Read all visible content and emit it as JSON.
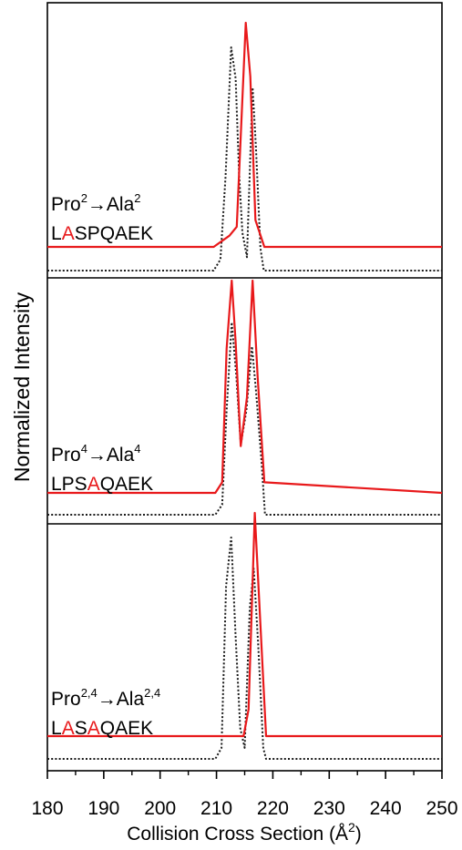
{
  "colors": {
    "red": "#e8191b",
    "black": "#1a1a1a",
    "axis": "#000000"
  },
  "chart_data": {
    "type": "line",
    "ylabel": "Normalized Intensity",
    "xlabel": {
      "text": "Collision Cross Section (Å",
      "sup": "2",
      "close": ")"
    },
    "xlim": [
      180,
      250
    ],
    "xticks": [
      "180",
      "190",
      "200",
      "210",
      "220",
      "230",
      "240",
      "250"
    ],
    "yticks": false,
    "panels": [
      {
        "label_line1": {
          "pre": "Pro",
          "sup1": "2",
          "arrow": "→",
          "mid": "Ala",
          "sup2": "2"
        },
        "label_line2": [
          {
            "t": "L",
            "red": false
          },
          {
            "t": "A",
            "red": true
          },
          {
            "t": "SPQAEK",
            "red": false
          }
        ],
        "series": [
          {
            "name": "",
            "style": "solid-red",
            "x": [
              180,
              209.5,
              212.3,
              213.6,
              214.4,
              215.2,
              216.0,
              216.9,
              218.5,
              250
            ],
            "y": [
              0,
              0,
              0.05,
              0.09,
              0.55,
              1.0,
              0.76,
              0.12,
              0,
              0
            ]
          },
          {
            "name": "",
            "style": "dotted-black",
            "x": [
              180,
              209.5,
              210.7,
              211.6,
              212.6,
              213.4,
              214.0,
              214.6,
              215.4,
              216.4,
              217.0,
              217.8,
              218.4,
              250
            ],
            "y": [
              0,
              0,
              0.05,
              0.42,
              1.0,
              0.86,
              0.44,
              0.17,
              0.06,
              0.82,
              0.55,
              0.1,
              0,
              0
            ]
          }
        ]
      },
      {
        "label_line1": {
          "pre": "Pro",
          "sup1": "4",
          "arrow": "→",
          "mid": "Ala",
          "sup2": "4"
        },
        "label_line2": [
          {
            "t": "LPS",
            "red": false
          },
          {
            "t": "A",
            "red": true
          },
          {
            "t": "QAEK",
            "red": false
          }
        ],
        "series": [
          {
            "name": "",
            "style": "solid-red",
            "x": [
              180,
              209.8,
              211.0,
              211.8,
              212.7,
              213.4,
              214.3,
              215.4,
              216.4,
              217.3,
              218.5,
              250
            ],
            "y": [
              0,
              0,
              0.05,
              0.68,
              1.0,
              0.71,
              0.22,
              0.45,
              1.0,
              0.55,
              0.05,
              0
            ]
          },
          {
            "name": "",
            "style": "dotted-black",
            "x": [
              180,
              209.8,
              211.0,
              211.8,
              212.7,
              213.5,
              214.3,
              215.3,
              216.3,
              217.0,
              218.0,
              218.6,
              250
            ],
            "y": [
              0,
              0,
              0.05,
              0.52,
              0.96,
              0.7,
              0.35,
              0.52,
              0.84,
              0.62,
              0.26,
              0,
              0
            ]
          }
        ]
      },
      {
        "label_line1": {
          "pre": "Pro",
          "sup1": "2,4",
          "arrow": "→",
          "mid": "Ala",
          "sup2": "2,4"
        },
        "label_line2": [
          {
            "t": "L",
            "red": false
          },
          {
            "t": "A",
            "red": true
          },
          {
            "t": "S",
            "red": false
          },
          {
            "t": "A",
            "red": true
          },
          {
            "t": "QAEK",
            "red": false
          }
        ],
        "series": [
          {
            "name": "",
            "style": "solid-red",
            "x": [
              180,
              214.8,
              215.7,
              216.8,
              217.9,
              218.8,
              250
            ],
            "y": [
              0,
              0,
              0.12,
              1.0,
              0.45,
              0,
              0
            ]
          },
          {
            "name": "",
            "style": "dotted-black",
            "x": [
              180,
              209.8,
              210.9,
              211.7,
              212.6,
              213.4,
              214.2,
              215.0,
              215.9,
              216.6,
              217.4,
              218.3,
              218.8,
              250
            ],
            "y": [
              0,
              0,
              0.05,
              0.78,
              1.0,
              0.55,
              0.14,
              0.05,
              0.68,
              0.86,
              0.52,
              0.05,
              0,
              0
            ]
          }
        ]
      }
    ]
  }
}
